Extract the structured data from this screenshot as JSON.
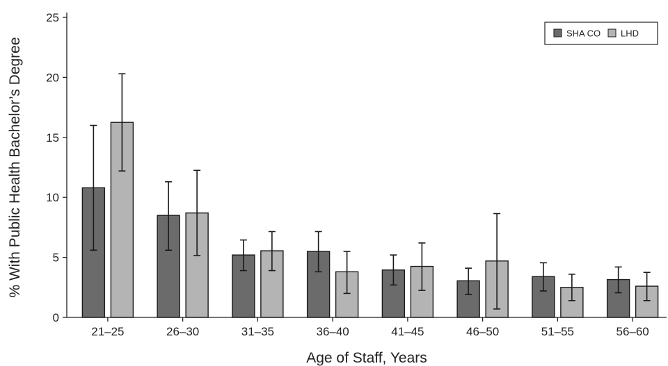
{
  "chart_data": {
    "type": "bar",
    "title": "",
    "xlabel": "Age of Staff, Years",
    "ylabel": "% With Public Health Bachelor’s Degree",
    "categories": [
      "21–25",
      "26–30",
      "31–35",
      "36–40",
      "41–45",
      "46–50",
      "51–55",
      "56–60"
    ],
    "ylim": [
      0,
      25
    ],
    "yticks": [
      0,
      5,
      10,
      15,
      20,
      25
    ],
    "grid": false,
    "legend_position": "top-right",
    "series": [
      {
        "name": "SHA CO",
        "color": "#6b6b6b",
        "values": [
          10.8,
          8.5,
          5.2,
          5.5,
          3.95,
          3.05,
          3.4,
          3.15
        ],
        "error_low": [
          5.6,
          5.6,
          3.9,
          3.8,
          2.7,
          1.9,
          2.2,
          2.05
        ],
        "error_high": [
          16.0,
          11.3,
          6.45,
          7.15,
          5.2,
          4.1,
          4.55,
          4.2
        ]
      },
      {
        "name": "LHD",
        "color": "#b4b4b4",
        "values": [
          16.25,
          8.7,
          5.55,
          3.8,
          4.25,
          4.7,
          2.5,
          2.6
        ],
        "error_low": [
          12.2,
          5.15,
          3.9,
          2.0,
          2.25,
          0.7,
          1.4,
          1.4
        ],
        "error_high": [
          20.3,
          12.25,
          7.15,
          5.5,
          6.2,
          8.65,
          3.6,
          3.75
        ]
      }
    ]
  }
}
